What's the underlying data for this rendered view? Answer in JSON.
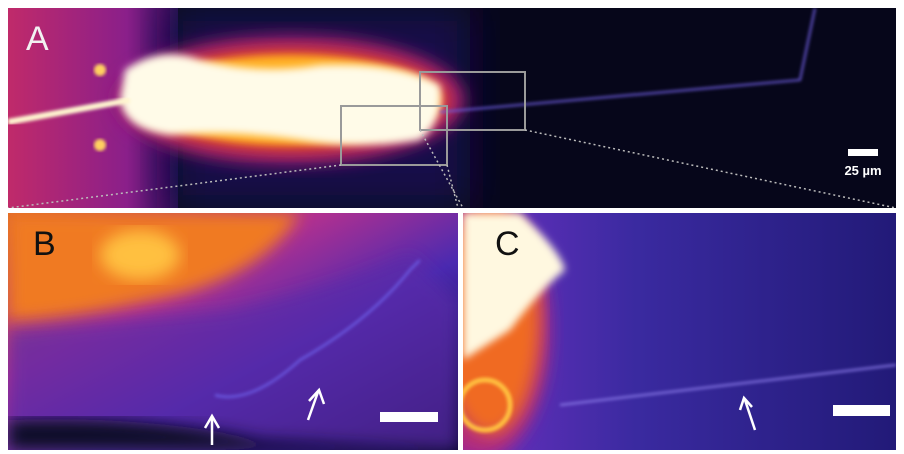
{
  "panels": [
    {
      "label": "A"
    },
    {
      "label": "B"
    },
    {
      "label": "C"
    }
  ],
  "scale_bar": {
    "label": "25 µm"
  }
}
